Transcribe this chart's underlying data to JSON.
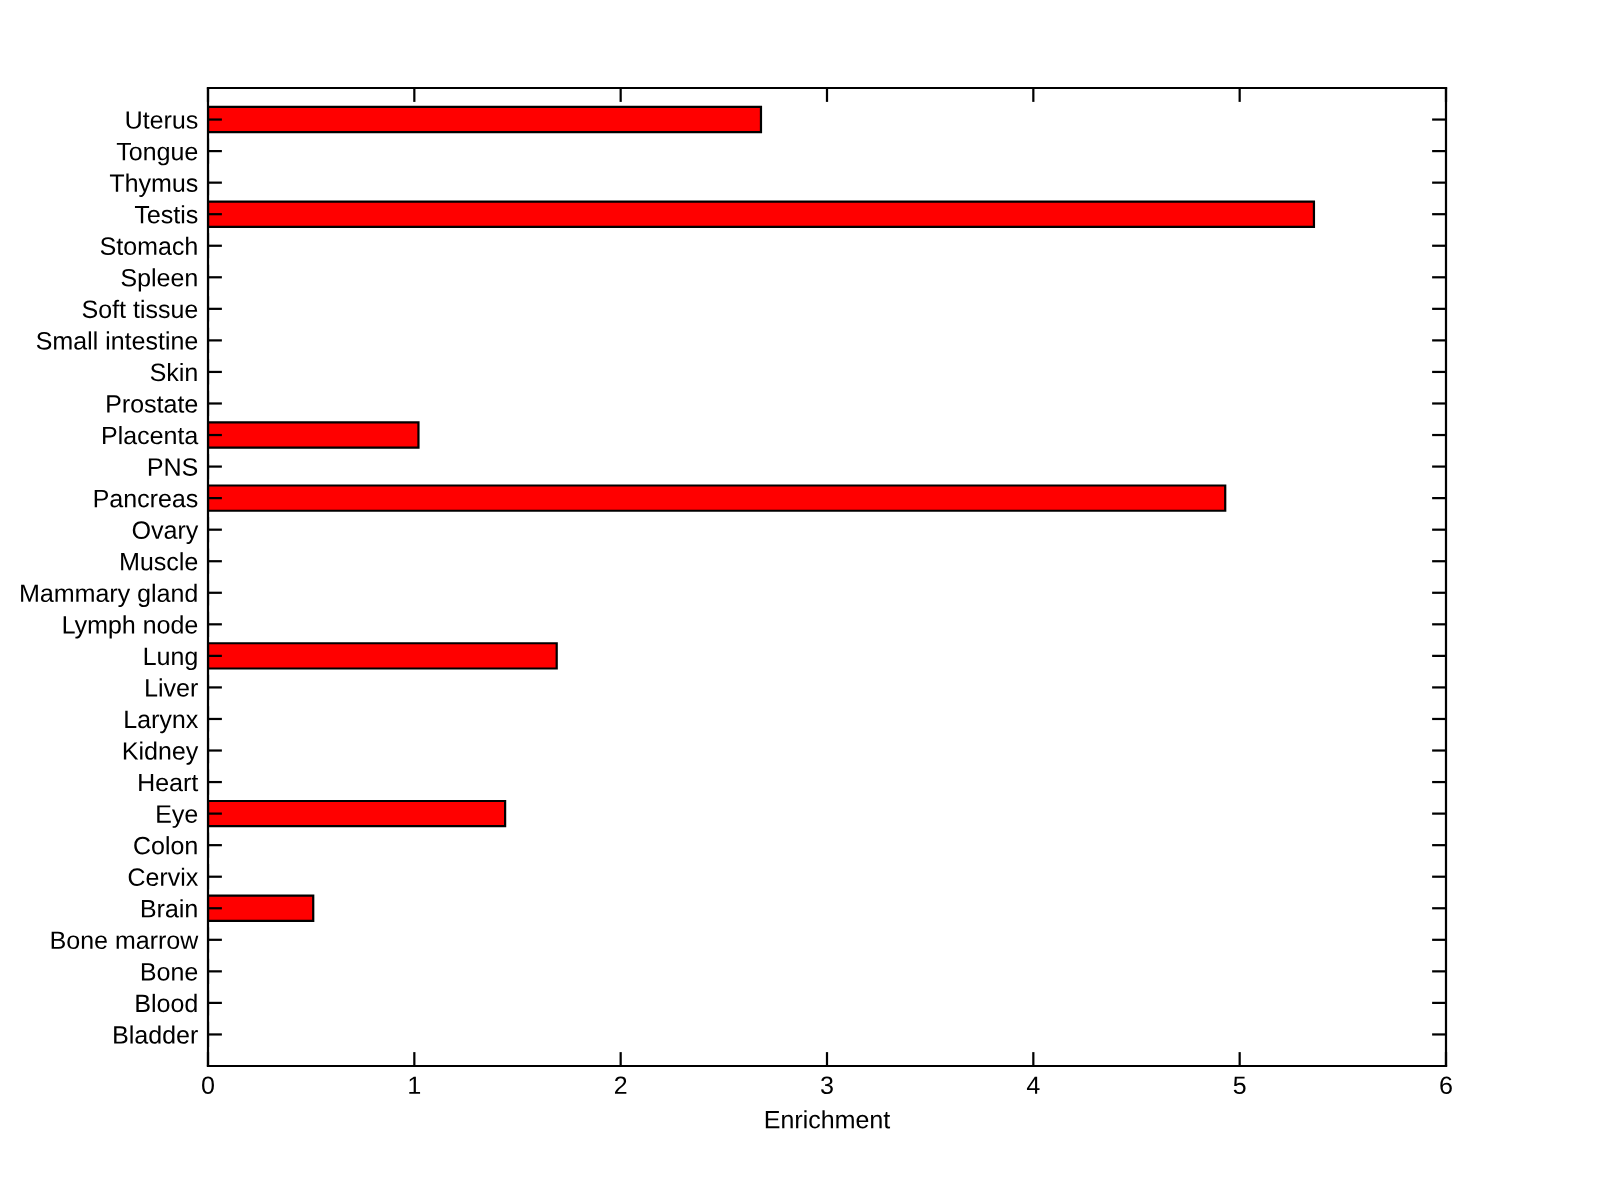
{
  "chart_data": {
    "type": "bar",
    "orientation": "horizontal",
    "xlabel": "Enrichment",
    "categories": [
      "Uterus",
      "Tongue",
      "Thymus",
      "Testis",
      "Stomach",
      "Spleen",
      "Soft tissue",
      "Small intestine",
      "Skin",
      "Prostate",
      "Placenta",
      "PNS",
      "Pancreas",
      "Ovary",
      "Muscle",
      "Mammary gland",
      "Lymph node",
      "Lung",
      "Liver",
      "Larynx",
      "Kidney",
      "Heart",
      "Eye",
      "Colon",
      "Cervix",
      "Brain",
      "Bone marrow",
      "Bone",
      "Blood",
      "Bladder"
    ],
    "values": [
      2.68,
      0,
      0,
      5.36,
      0,
      0,
      0,
      0,
      0,
      0,
      1.02,
      0,
      4.93,
      0,
      0,
      0,
      0,
      1.69,
      0,
      0,
      0,
      0,
      1.44,
      0,
      0,
      0.51,
      0,
      0,
      0,
      0
    ],
    "color": "#ff0000",
    "xlim": [
      0,
      6
    ],
    "xticks": [
      0,
      1,
      2,
      3,
      4,
      5,
      6
    ],
    "grid": false,
    "legend": false
  }
}
